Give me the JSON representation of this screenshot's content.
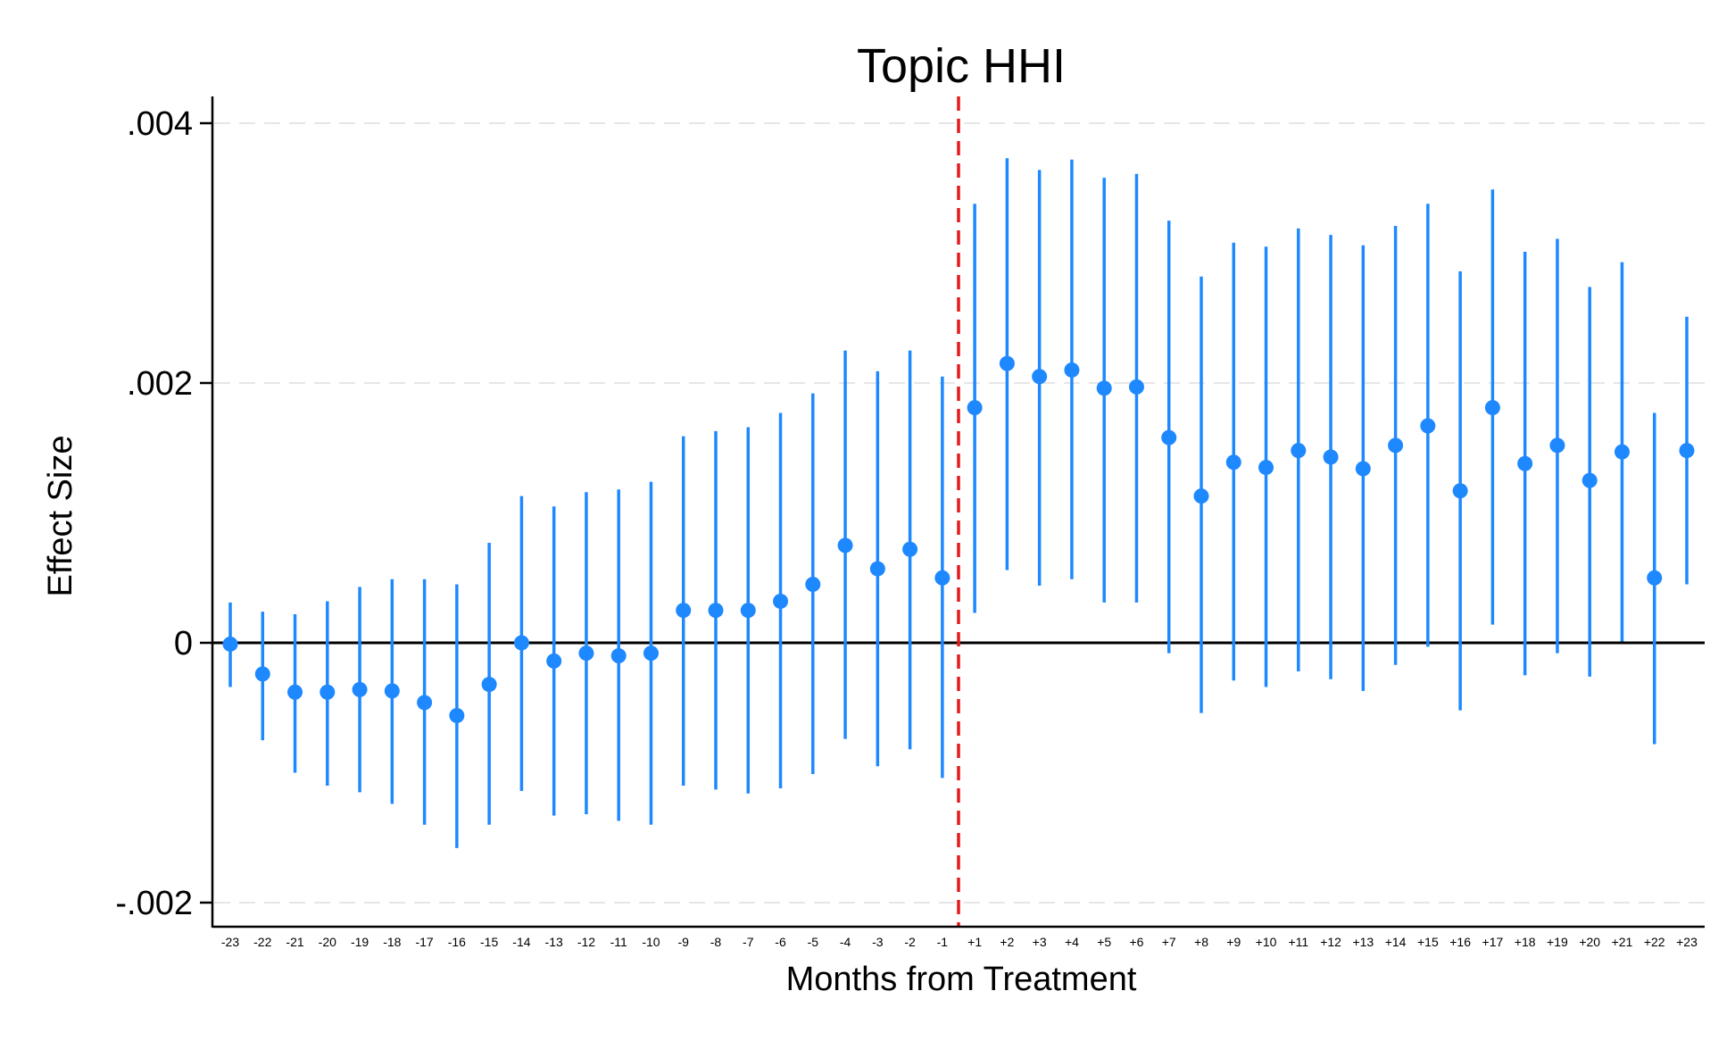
{
  "chart_data": {
    "type": "scatter",
    "title": "Topic HHI",
    "xlabel": "Months from Treatment",
    "ylabel": "Effect Size",
    "ylim": [
      -0.0022,
      0.0041
    ],
    "yticks": [
      {
        "value": 0.004,
        "label": ".004"
      },
      {
        "value": 0.002,
        "label": ".002"
      },
      {
        "value": 0,
        "label": "0"
      },
      {
        "value": -0.002,
        "label": "-.002"
      }
    ],
    "categories": [
      "-23",
      "-22",
      "-21",
      "-20",
      "-19",
      "-18",
      "-17",
      "-16",
      "-15",
      "-14",
      "-13",
      "-12",
      "-11",
      "-10",
      "-9",
      "-8",
      "-7",
      "-6",
      "-5",
      "-4",
      "-3",
      "-2",
      "-1",
      "+1",
      "+2",
      "+3",
      "+4",
      "+5",
      "+6",
      "+7",
      "+8",
      "+9",
      "+10",
      "+11",
      "+12",
      "+13",
      "+14",
      "+15",
      "+16",
      "+17",
      "+18",
      "+19",
      "+20",
      "+21",
      "+22",
      "+23"
    ],
    "estimate": [
      -1e-05,
      -0.00024,
      -0.00038,
      -0.00038,
      -0.00036,
      -0.00037,
      -0.00046,
      -0.00056,
      -0.00032,
      0.0,
      -0.00014,
      -8e-05,
      -0.0001,
      -8e-05,
      0.00025,
      0.00025,
      0.00025,
      0.00032,
      0.00045,
      0.00075,
      0.00057,
      0.00072,
      0.0005,
      0.00181,
      0.00215,
      0.00205,
      0.0021,
      0.00196,
      0.00197,
      0.00158,
      0.00113,
      0.00139,
      0.00135,
      0.00148,
      0.00143,
      0.00134,
      0.00152,
      0.00167,
      0.00117,
      0.00181,
      0.00138,
      0.00152,
      0.00125,
      0.00147,
      0.0005,
      0.00148
    ],
    "ci_low": [
      -0.00034,
      -0.00075,
      -0.001,
      -0.0011,
      -0.00115,
      -0.00124,
      -0.0014,
      -0.00158,
      -0.0014,
      -0.00114,
      -0.00133,
      -0.00132,
      -0.00137,
      -0.0014,
      -0.0011,
      -0.00113,
      -0.00116,
      -0.00112,
      -0.00101,
      -0.00074,
      -0.00095,
      -0.00082,
      -0.00104,
      0.00023,
      0.00056,
      0.00044,
      0.00049,
      0.00031,
      0.00031,
      -8e-05,
      -0.00054,
      -0.00029,
      -0.00034,
      -0.00022,
      -0.00028,
      -0.00037,
      -0.00017,
      -3e-05,
      -0.00052,
      0.00014,
      -0.00025,
      -8e-05,
      -0.00026,
      1e-05,
      -0.00078,
      0.00045
    ],
    "ci_high": [
      0.00031,
      0.00024,
      0.00022,
      0.00032,
      0.00043,
      0.00049,
      0.00049,
      0.00045,
      0.00077,
      0.00113,
      0.00105,
      0.00116,
      0.00118,
      0.00124,
      0.00159,
      0.00163,
      0.00166,
      0.00177,
      0.00192,
      0.00225,
      0.00209,
      0.00225,
      0.00205,
      0.00338,
      0.00373,
      0.00364,
      0.00372,
      0.00358,
      0.00361,
      0.00325,
      0.00282,
      0.00308,
      0.00305,
      0.00319,
      0.00314,
      0.00306,
      0.00321,
      0.00338,
      0.00286,
      0.00349,
      0.00301,
      0.00311,
      0.00274,
      0.00293,
      0.00177,
      0.00251
    ],
    "reference_line": {
      "between": [
        "-1",
        "+1"
      ],
      "color": "#e41a1c",
      "style": "dashed"
    },
    "zero_line": true,
    "grid": "horizontal-dashed",
    "colors": {
      "marker": "#1e88ff",
      "ci": "#1e88ff",
      "reference": "#e41a1c",
      "axis": "#000000",
      "grid": "#e6e6e6"
    }
  }
}
